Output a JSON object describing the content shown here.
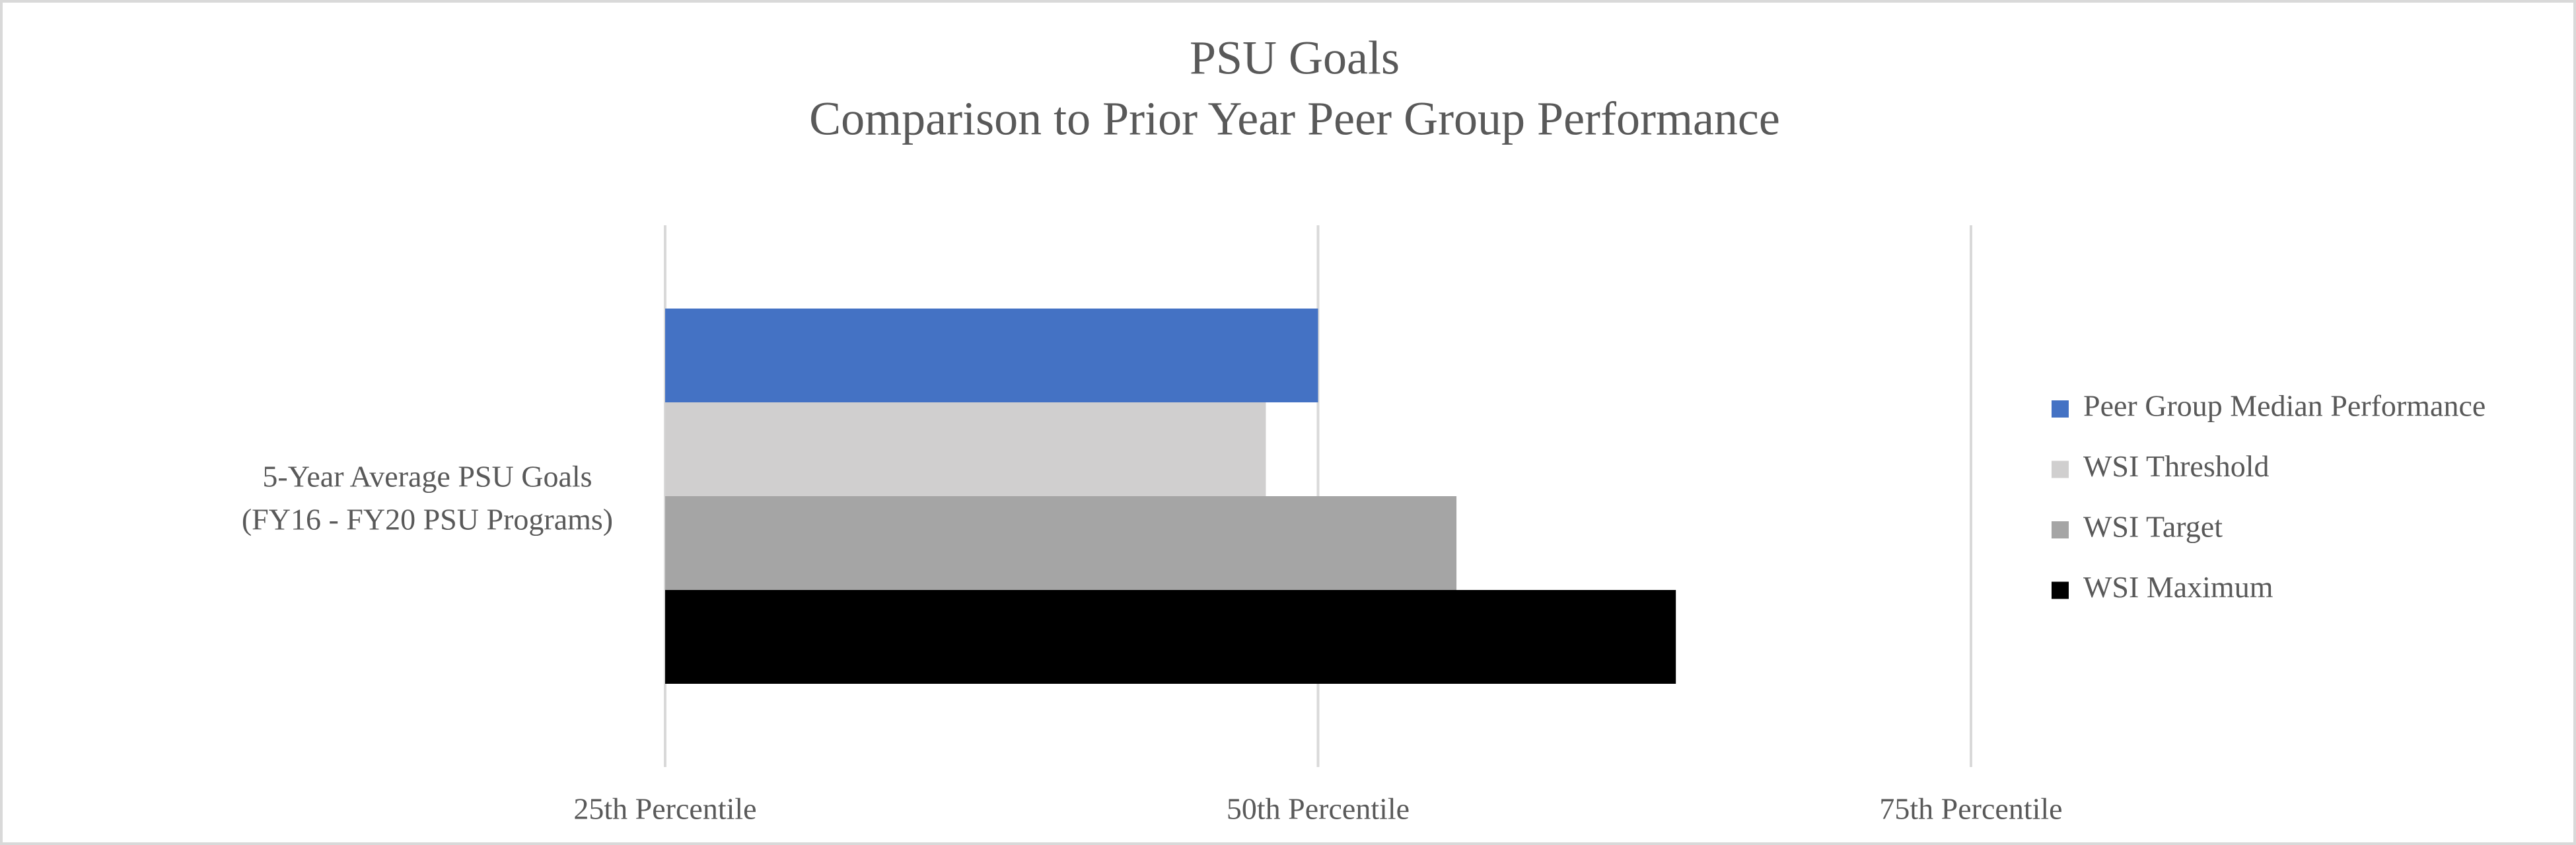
{
  "chart_data": {
    "type": "bar",
    "orientation": "horizontal",
    "title": "PSU Goals",
    "subtitle": "Comparison to Prior Year Peer Group Performance",
    "categories": [
      "5-Year Average PSU Goals\n(FY16 - FY20 PSU Programs)"
    ],
    "series": [
      {
        "name": "Peer Group Median Performance",
        "color": "#4472c4",
        "values": [
          50
        ]
      },
      {
        "name": "WSI Threshold",
        "color": "#d0cfcf",
        "values": [
          48
        ]
      },
      {
        "name": "WSI Target",
        "color": "#a5a5a5",
        "values": [
          55.3
        ]
      },
      {
        "name": "WSI Maximum",
        "color": "#000000",
        "values": [
          63.7
        ]
      }
    ],
    "xlim": [
      25,
      75
    ],
    "xticks": [
      {
        "value": 25,
        "label": "25th Percentile"
      },
      {
        "value": 50,
        "label": "50th Percentile"
      },
      {
        "value": 75,
        "label": "75th Percentile"
      }
    ],
    "grid": true,
    "legend": "right"
  }
}
